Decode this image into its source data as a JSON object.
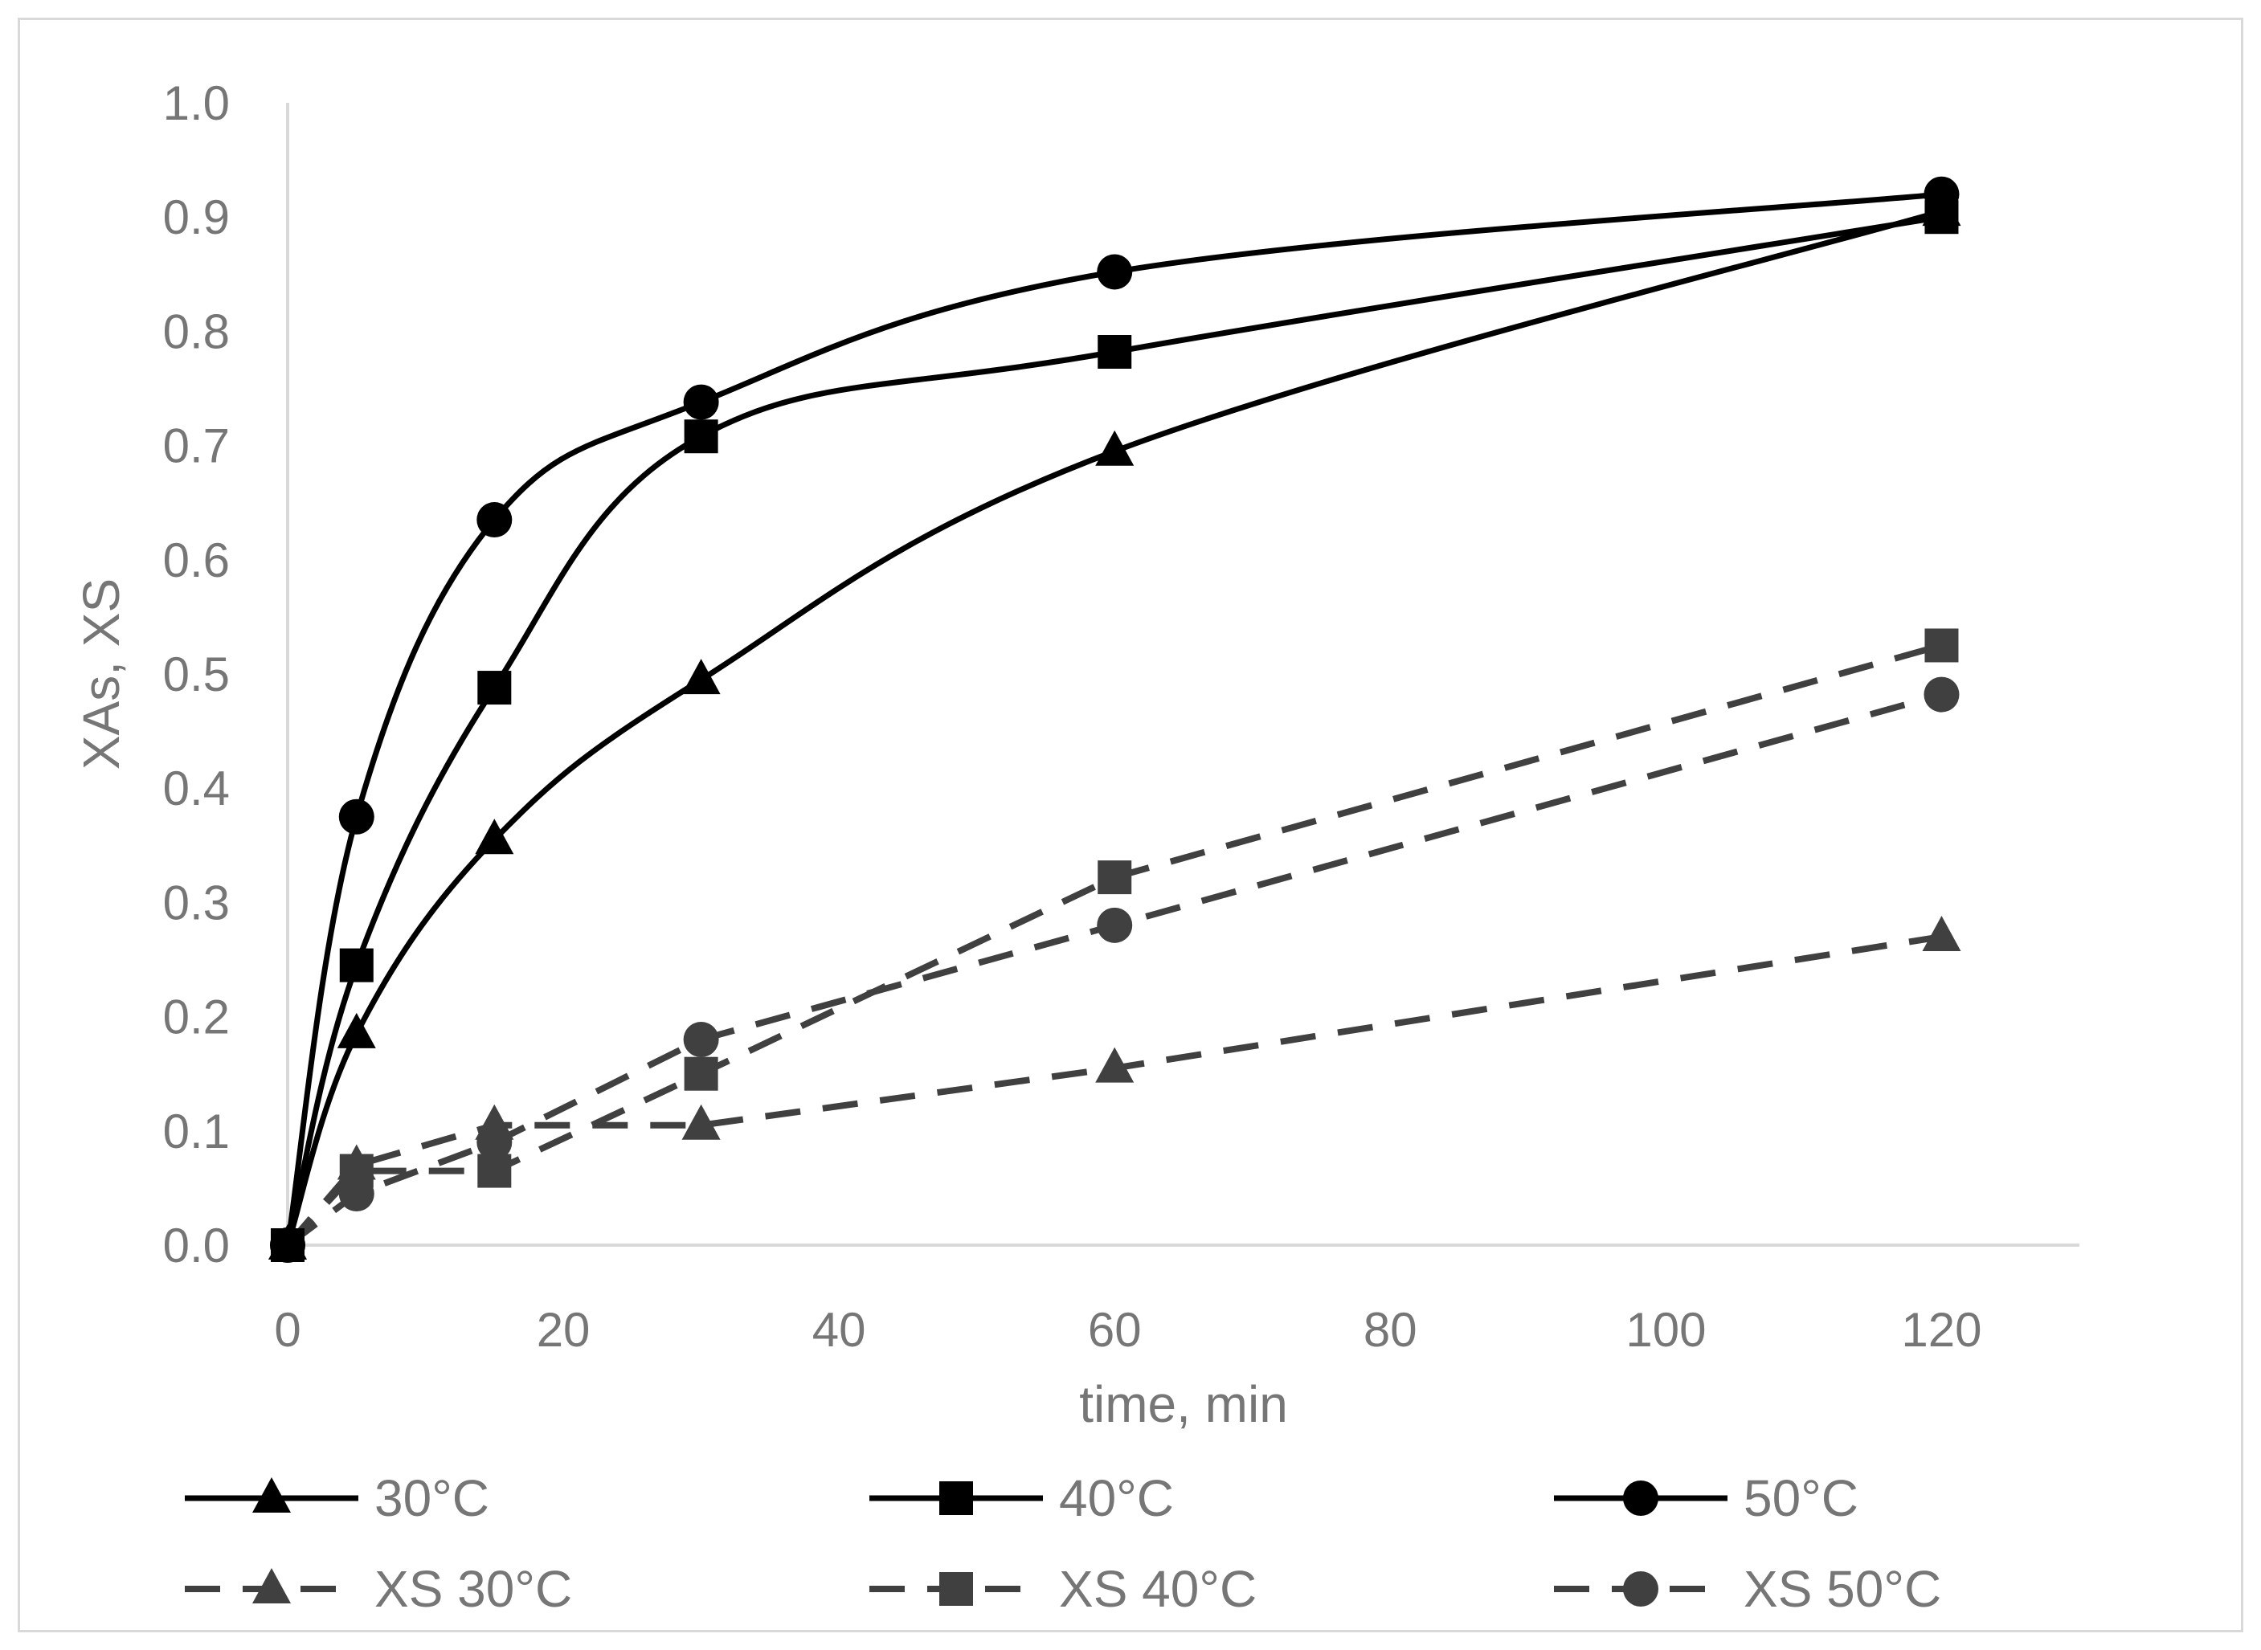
{
  "chart_data": {
    "type": "line",
    "title": "",
    "xlabel": "time, min",
    "ylabel": "XAs, XS",
    "xlim": [
      0,
      130
    ],
    "ylim": [
      0,
      1.0
    ],
    "x_ticks": [
      0,
      20,
      40,
      60,
      80,
      100,
      120
    ],
    "x_tick_labels": [
      "0",
      "20",
      "40",
      "60",
      "80",
      "100",
      "120"
    ],
    "y_ticks": [
      0,
      0.1,
      0.2,
      0.3,
      0.4,
      0.5,
      0.6,
      0.7,
      0.8,
      0.9,
      1.0
    ],
    "y_tick_labels": [
      "0.0",
      "0.1",
      "0.2",
      "0.3",
      "0.4",
      "0.5",
      "0.6",
      "0.7",
      "0.8",
      "0.9",
      "1.0"
    ],
    "grid": false,
    "legend_position": "bottom",
    "x": [
      0,
      5,
      15,
      30,
      60,
      120
    ],
    "series": [
      {
        "name": "30°C",
        "marker": "triangle",
        "style": "solid",
        "color": "#000000",
        "smooth": true,
        "values": [
          0.0,
          0.185,
          0.355,
          0.495,
          0.695,
          0.905
        ]
      },
      {
        "name": "40°C",
        "marker": "square",
        "style": "solid",
        "color": "#000000",
        "smooth": true,
        "values": [
          0.0,
          0.245,
          0.488,
          0.708,
          0.782,
          0.9
        ]
      },
      {
        "name": "50°C",
        "marker": "circle",
        "style": "solid",
        "color": "#000000",
        "smooth": true,
        "values": [
          0.0,
          0.375,
          0.635,
          0.738,
          0.852,
          0.92
        ]
      },
      {
        "name": "XS 30°C",
        "marker": "triangle",
        "style": "dashed",
        "color": "#404040",
        "smooth": false,
        "values": [
          0.0,
          0.07,
          0.105,
          0.105,
          0.155,
          0.27
        ]
      },
      {
        "name": "XS 40°C",
        "marker": "square",
        "style": "dashed",
        "color": "#404040",
        "smooth": false,
        "values": [
          0.0,
          0.065,
          0.065,
          0.15,
          0.322,
          0.525
        ]
      },
      {
        "name": "XS 50°C",
        "marker": "circle",
        "style": "dashed",
        "color": "#404040",
        "smooth": false,
        "values": [
          0.0,
          0.045,
          0.09,
          0.18,
          0.28,
          0.482
        ]
      }
    ]
  }
}
